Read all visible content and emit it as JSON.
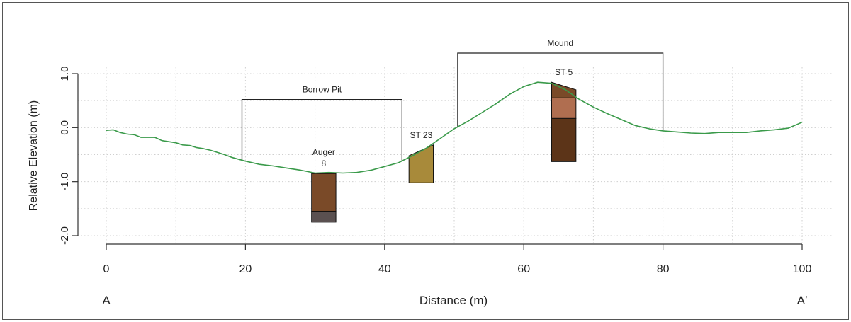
{
  "chart_data": {
    "type": "line",
    "title": "",
    "xlabel": "Distance (m)",
    "ylabel": "Relative Elevation (m)",
    "xlim": [
      0,
      100
    ],
    "ylim": [
      -2.0,
      1.0
    ],
    "x_ticks": [
      "0",
      "20",
      "40",
      "60",
      "80",
      "100"
    ],
    "y_ticks": [
      "-2.0",
      "-1.0",
      "0.0",
      "1.0"
    ],
    "grid": true,
    "line_color": "#3a9a4a",
    "endpoints": {
      "left": "A",
      "right": "A′"
    },
    "profile": {
      "x": [
        0,
        1,
        2,
        3,
        4,
        5,
        6,
        7,
        8,
        9,
        10,
        11,
        12,
        13,
        14,
        15,
        16,
        17,
        18,
        20,
        22,
        24,
        26,
        28,
        30,
        32,
        34,
        36,
        38,
        40,
        42,
        44,
        46,
        48,
        50,
        52,
        54,
        56,
        58,
        60,
        62,
        64,
        66,
        68,
        70,
        72,
        74,
        76,
        78,
        80,
        82,
        84,
        86,
        88,
        90,
        92,
        94,
        96,
        98,
        100
      ],
      "y": [
        -0.05,
        -0.04,
        -0.09,
        -0.12,
        -0.13,
        -0.18,
        -0.18,
        -0.18,
        -0.24,
        -0.26,
        -0.28,
        -0.32,
        -0.33,
        -0.37,
        -0.39,
        -0.42,
        -0.46,
        -0.5,
        -0.55,
        -0.62,
        -0.68,
        -0.71,
        -0.75,
        -0.79,
        -0.84,
        -0.83,
        -0.84,
        -0.83,
        -0.79,
        -0.72,
        -0.65,
        -0.52,
        -0.38,
        -0.2,
        -0.02,
        0.12,
        0.28,
        0.44,
        0.62,
        0.76,
        0.84,
        0.82,
        0.7,
        0.52,
        0.38,
        0.26,
        0.15,
        0.04,
        -0.02,
        -0.06,
        -0.08,
        -0.1,
        -0.11,
        -0.09,
        -0.09,
        -0.09,
        -0.06,
        -0.04,
        -0.01,
        0.1
      ]
    },
    "brackets": [
      {
        "label": "Borrow Pit",
        "x_start": 19.5,
        "x_end": 42.5,
        "y_top": 0.52
      },
      {
        "label": "Mound",
        "x_start": 50.5,
        "x_end": 80,
        "y_top": 1.38
      }
    ],
    "cores": [
      {
        "label_lines": [
          "Auger",
          "8"
        ],
        "x_start": 29.5,
        "x_end": 33,
        "layers": [
          {
            "y_top": -0.85,
            "y_bottom": -1.55,
            "color": "#7a4a28"
          },
          {
            "y_top": -1.55,
            "y_bottom": -1.75,
            "color": "#5a5050"
          }
        ]
      },
      {
        "label_lines": [
          "ST 23"
        ],
        "x_start": 43.5,
        "x_end": 47,
        "top_left_y": -0.52,
        "top_right_y": -0.32,
        "layers": [
          {
            "y_top": -0.32,
            "y_bottom": -1.02,
            "color": "#a88a3a"
          }
        ]
      },
      {
        "label_lines": [
          "ST 5"
        ],
        "x_start": 64,
        "x_end": 67.5,
        "top_left_y": 0.84,
        "top_right_y": 0.7,
        "layers": [
          {
            "y_top": 0.84,
            "y_bottom": 0.55,
            "color": "#7a4a28"
          },
          {
            "y_top": 0.55,
            "y_bottom": 0.17,
            "color": "#b06e50"
          },
          {
            "y_top": 0.17,
            "y_bottom": -0.63,
            "color": "#5c3418"
          }
        ]
      }
    ]
  }
}
